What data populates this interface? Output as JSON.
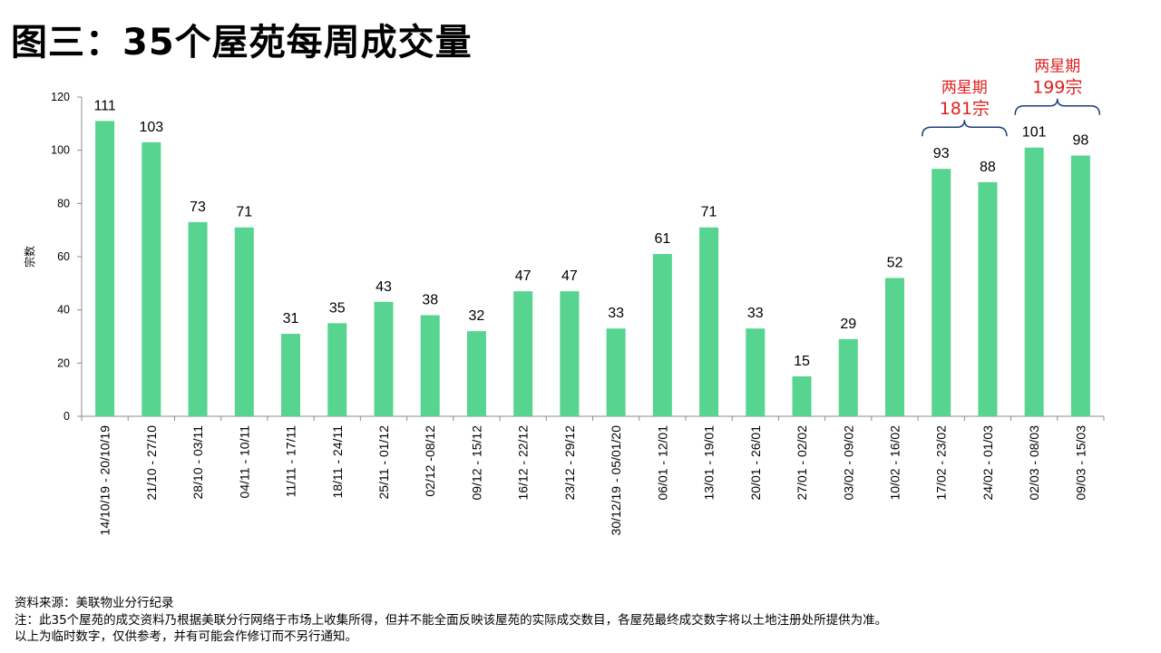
{
  "title": "图三：35个屋苑每周成交量",
  "chart_data": {
    "type": "bar",
    "ylabel": "宗数",
    "ylim": [
      0,
      120
    ],
    "yticks": [
      0,
      20,
      40,
      60,
      80,
      100,
      120
    ],
    "bar_color": "#57d48f",
    "annotation_color": "#e02020",
    "bracket_color": "#1f3d7a",
    "categories": [
      "14/10/19 - 20/10/19",
      "21/10 - 27/10",
      "28/10 - 03/11",
      "04/11 - 10/11",
      "11/11 - 17/11",
      "18/11 - 24/11",
      "25/11 - 01/12",
      "02/12 -08/12",
      "09/12 - 15/12",
      "16/12 - 22/12",
      "23/12 - 29/12",
      "30/12/19 - 05/01/20",
      "06/01 - 12/01",
      "13/01 - 19/01",
      "20/01 - 26/01",
      "27/01 - 02/02",
      "03/02 - 09/02",
      "10/02 - 16/02",
      "17/02 - 23/02",
      "24/02 - 01/03",
      "02/03 - 08/03",
      "09/03 - 15/03"
    ],
    "values": [
      111,
      103,
      73,
      71,
      31,
      35,
      43,
      38,
      32,
      47,
      47,
      33,
      61,
      71,
      33,
      15,
      29,
      52,
      93,
      88,
      101,
      98
    ],
    "annotations": [
      {
        "line1": "两星期",
        "line2": "181宗",
        "from": 18,
        "to": 19
      },
      {
        "line1": "两星期",
        "line2": "199宗",
        "from": 20,
        "to": 21
      }
    ]
  },
  "notes": [
    "资料来源：美联物业分行纪录",
    "注：此35个屋苑的成交资料乃根据美联分行网络于市场上收集所得，但并不能全面反映该屋苑的实际成交数目，各屋苑最终成交数字将以土地注册处所提供为准。",
    "以上为临时数字，仅供参考，并有可能会作修订而不另行通知。"
  ]
}
